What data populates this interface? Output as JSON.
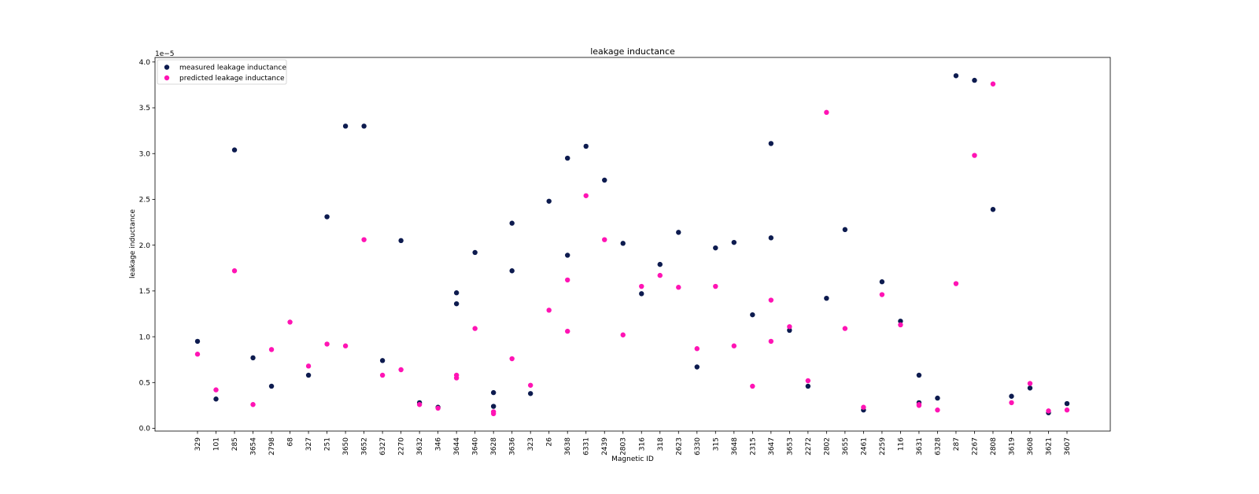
{
  "chart_data": {
    "type": "scatter",
    "title": "leakage inductance",
    "xlabel": "Magnetic ID",
    "ylabel": "leakage inductance",
    "y_offset_text": "1e−5",
    "y_scale_factor": 1e-05,
    "ylim": [
      -0.03,
      4.05
    ],
    "yticks": [
      0.0,
      0.5,
      1.0,
      1.5,
      2.0,
      2.5,
      3.0,
      3.5,
      4.0
    ],
    "ytick_labels": [
      "0.0",
      "0.5",
      "1.0",
      "1.5",
      "2.0",
      "2.5",
      "3.0",
      "3.5",
      "4.0"
    ],
    "grid": false,
    "legend_position": "top-left",
    "categories": [
      "329",
      "101",
      "285",
      "3654",
      "2798",
      "68",
      "327",
      "251",
      "3650",
      "3652",
      "6327",
      "2270",
      "3632",
      "346",
      "3644",
      "3640",
      "3628",
      "3636",
      "323",
      "26",
      "3638",
      "6331",
      "2439",
      "2803",
      "316",
      "318",
      "2623",
      "6330",
      "315",
      "3648",
      "2315",
      "3647",
      "3653",
      "2272",
      "2802",
      "3655",
      "2461",
      "2259",
      "116",
      "3631",
      "6328",
      "287",
      "2267",
      "2808",
      "3619",
      "3608",
      "3621",
      "3607"
    ],
    "series": [
      {
        "name": "measured leakage inductance",
        "color": "#0d1b4f",
        "points": [
          [
            0,
            0.95
          ],
          [
            1,
            0.32
          ],
          [
            2,
            3.04
          ],
          [
            3,
            0.77
          ],
          [
            4,
            0.46
          ],
          [
            6,
            0.58
          ],
          [
            7,
            2.31
          ],
          [
            8,
            3.3
          ],
          [
            9,
            3.3
          ],
          [
            10,
            0.74
          ],
          [
            11,
            2.05
          ],
          [
            12,
            0.28
          ],
          [
            13,
            0.23
          ],
          [
            14,
            1.48
          ],
          [
            14,
            1.36
          ],
          [
            15,
            1.92
          ],
          [
            16,
            0.39
          ],
          [
            16,
            0.24
          ],
          [
            17,
            2.24
          ],
          [
            17,
            1.72
          ],
          [
            18,
            0.38
          ],
          [
            19,
            2.48
          ],
          [
            20,
            2.95
          ],
          [
            20,
            1.89
          ],
          [
            21,
            3.08
          ],
          [
            22,
            2.71
          ],
          [
            23,
            2.02
          ],
          [
            24,
            1.47
          ],
          [
            25,
            1.79
          ],
          [
            26,
            2.14
          ],
          [
            27,
            0.67
          ],
          [
            28,
            1.97
          ],
          [
            29,
            2.03
          ],
          [
            30,
            1.24
          ],
          [
            31,
            3.11
          ],
          [
            31,
            2.08
          ],
          [
            32,
            1.07
          ],
          [
            33,
            0.46
          ],
          [
            34,
            1.42
          ],
          [
            35,
            2.17
          ],
          [
            36,
            0.2
          ],
          [
            37,
            1.6
          ],
          [
            38,
            1.17
          ],
          [
            39,
            0.58
          ],
          [
            39,
            0.28
          ],
          [
            40,
            0.33
          ],
          [
            41,
            3.85
          ],
          [
            42,
            3.8
          ],
          [
            43,
            2.39
          ],
          [
            44,
            0.35
          ],
          [
            45,
            0.44
          ],
          [
            46,
            0.17
          ],
          [
            47,
            0.27
          ]
        ]
      },
      {
        "name": "predicted leakage inductance",
        "color": "#ff14b4",
        "points": [
          [
            0,
            0.81
          ],
          [
            1,
            0.42
          ],
          [
            2,
            1.72
          ],
          [
            3,
            0.26
          ],
          [
            4,
            0.86
          ],
          [
            5,
            1.16
          ],
          [
            6,
            0.68
          ],
          [
            7,
            0.92
          ],
          [
            8,
            0.9
          ],
          [
            9,
            2.06
          ],
          [
            10,
            0.58
          ],
          [
            11,
            0.64
          ],
          [
            12,
            0.26
          ],
          [
            13,
            0.22
          ],
          [
            14,
            0.58
          ],
          [
            14,
            0.55
          ],
          [
            15,
            1.09
          ],
          [
            16,
            0.18
          ],
          [
            16,
            0.16
          ],
          [
            17,
            0.76
          ],
          [
            18,
            0.47
          ],
          [
            19,
            1.29
          ],
          [
            20,
            1.62
          ],
          [
            20,
            1.06
          ],
          [
            21,
            2.54
          ],
          [
            22,
            2.06
          ],
          [
            23,
            1.02
          ],
          [
            24,
            1.55
          ],
          [
            25,
            1.67
          ],
          [
            26,
            1.54
          ],
          [
            27,
            0.87
          ],
          [
            28,
            1.55
          ],
          [
            29,
            0.9
          ],
          [
            30,
            0.46
          ],
          [
            31,
            1.4
          ],
          [
            31,
            0.95
          ],
          [
            32,
            1.11
          ],
          [
            33,
            0.52
          ],
          [
            34,
            3.45
          ],
          [
            35,
            1.09
          ],
          [
            36,
            0.23
          ],
          [
            37,
            1.46
          ],
          [
            38,
            1.13
          ],
          [
            39,
            0.26
          ],
          [
            39,
            0.25
          ],
          [
            40,
            0.2
          ],
          [
            41,
            1.58
          ],
          [
            42,
            2.98
          ],
          [
            43,
            3.76
          ],
          [
            44,
            0.28
          ],
          [
            45,
            0.49
          ],
          [
            46,
            0.19
          ],
          [
            47,
            0.2
          ]
        ]
      }
    ]
  }
}
